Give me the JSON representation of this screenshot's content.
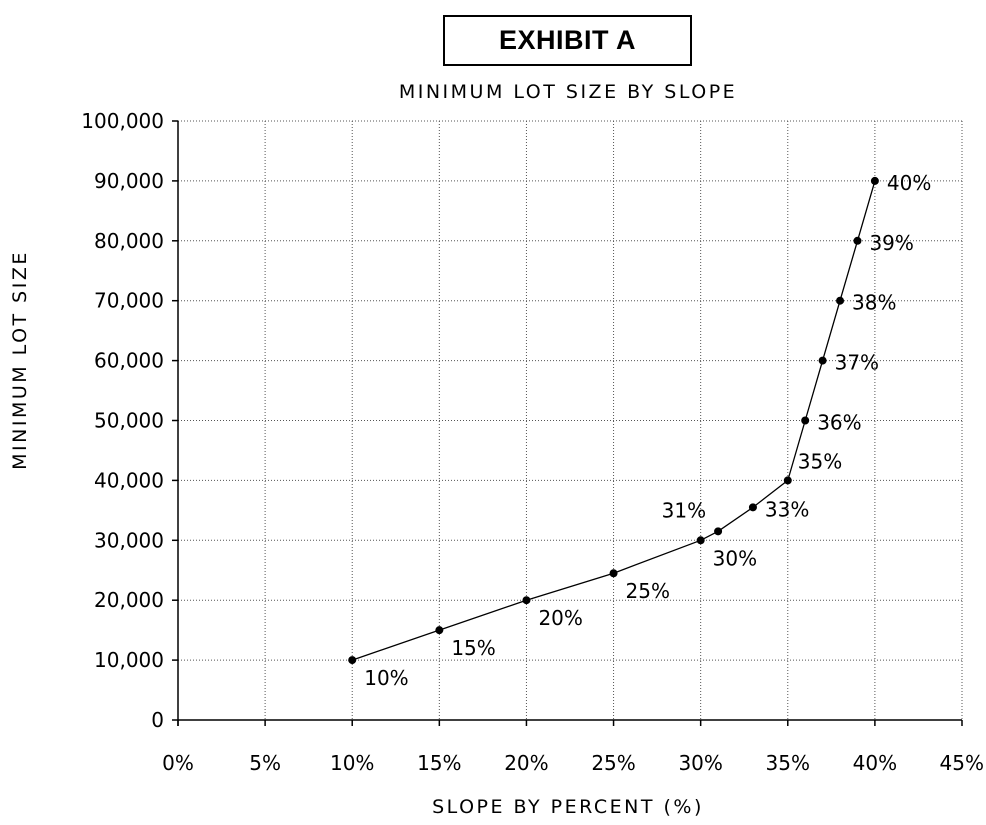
{
  "exhibit_label": "EXHIBIT A",
  "chart_data": {
    "type": "line",
    "title": "MINIMUM LOT SIZE BY SLOPE",
    "xlabel": "SLOPE BY PERCENT (%)",
    "ylabel": "MINIMUM LOT SIZE",
    "xlim": [
      0,
      45
    ],
    "ylim": [
      0,
      100000
    ],
    "x_ticks": [
      0,
      5,
      10,
      15,
      20,
      25,
      30,
      35,
      40,
      45
    ],
    "x_tick_labels": [
      "0%",
      "5%",
      "10%",
      "15%",
      "20%",
      "25%",
      "30%",
      "35%",
      "40%",
      "45%"
    ],
    "y_ticks": [
      0,
      10000,
      20000,
      30000,
      40000,
      50000,
      60000,
      70000,
      80000,
      90000,
      100000
    ],
    "y_tick_labels": [
      "0",
      "10,000",
      "20,000",
      "30,000",
      "40,000",
      "50,000",
      "60,000",
      "70,000",
      "80,000",
      "90,000",
      "100,000"
    ],
    "grid": true,
    "points": [
      {
        "x": 10,
        "y": 10000,
        "label": "10%",
        "label_pos": "below-right"
      },
      {
        "x": 15,
        "y": 15000,
        "label": "15%",
        "label_pos": "below-right"
      },
      {
        "x": 20,
        "y": 20000,
        "label": "20%",
        "label_pos": "below-right"
      },
      {
        "x": 25,
        "y": 24500,
        "label": "25%",
        "label_pos": "below-right"
      },
      {
        "x": 30,
        "y": 30000,
        "label": "30%",
        "label_pos": "below-right"
      },
      {
        "x": 31,
        "y": 31500,
        "label": "31%",
        "label_pos": "above-left"
      },
      {
        "x": 33,
        "y": 35500,
        "label": "33%",
        "label_pos": "right"
      },
      {
        "x": 35,
        "y": 40000,
        "label": "35%",
        "label_pos": "above-right"
      },
      {
        "x": 36,
        "y": 50000,
        "label": "36%",
        "label_pos": "right"
      },
      {
        "x": 37,
        "y": 60000,
        "label": "37%",
        "label_pos": "right"
      },
      {
        "x": 38,
        "y": 70000,
        "label": "38%",
        "label_pos": "right"
      },
      {
        "x": 39,
        "y": 80000,
        "label": "39%",
        "label_pos": "right"
      },
      {
        "x": 40,
        "y": 90000,
        "label": "40%",
        "label_pos": "right"
      }
    ]
  }
}
